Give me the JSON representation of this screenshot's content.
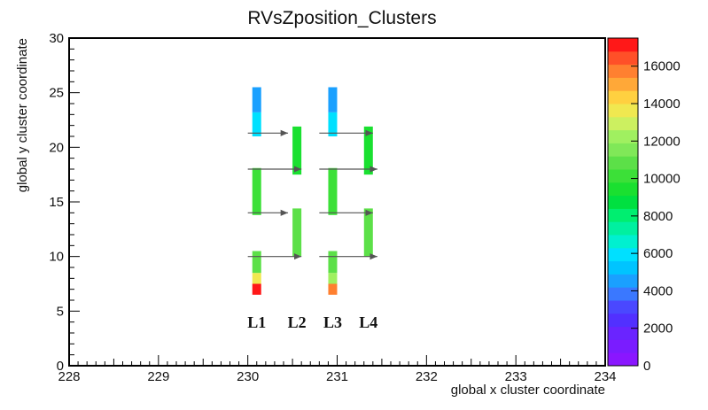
{
  "chart_data": {
    "type": "heatmap",
    "title": "RVsZposition_Clusters",
    "xlabel": "global x cluster coordinate",
    "ylabel": "global y cluster coordinate",
    "xlim": [
      228,
      234
    ],
    "ylim": [
      0,
      30
    ],
    "x_ticks": [
      "228",
      "229",
      "230",
      "231",
      "232",
      "233",
      "234"
    ],
    "y_ticks": [
      "0",
      "5",
      "10",
      "15",
      "20",
      "25",
      "30"
    ],
    "z_range": [
      0,
      17500
    ],
    "z_ticks": [
      "0",
      "2000",
      "4000",
      "6000",
      "8000",
      "10000",
      "12000",
      "14000",
      "16000"
    ],
    "palette": [
      "#8a16ff",
      "#7a1cff",
      "#6a24ff",
      "#5230ff",
      "#4a48ff",
      "#3a78ff",
      "#1aa0ff",
      "#00c4ff",
      "#00e0ff",
      "#00f0d0",
      "#00f0a0",
      "#00ee70",
      "#00e040",
      "#1ae030",
      "#3ce038",
      "#5ce048",
      "#80e858",
      "#a0f060",
      "#ccf060",
      "#f0e850",
      "#ffd040",
      "#ffa838",
      "#ff8030",
      "#ff5028",
      "#ff1818"
    ],
    "layer_labels": [
      "L1",
      "L2",
      "L3",
      "L4"
    ],
    "columns": [
      {
        "layer": "L1",
        "x": 230.1,
        "cells": [
          {
            "y0": 6.5,
            "y1": 7.5,
            "z": 17000
          },
          {
            "y0": 7.5,
            "y1": 8.5,
            "z": 13500
          },
          {
            "y0": 8.5,
            "y1": 10.5,
            "z": 10500
          },
          {
            "y0": 13.8,
            "y1": 18.1,
            "z": 10000
          },
          {
            "y0": 21.0,
            "y1": 23.2,
            "z": 6000
          },
          {
            "y0": 23.2,
            "y1": 25.5,
            "z": 4500
          }
        ]
      },
      {
        "layer": "L2",
        "x": 230.55,
        "cells": [
          {
            "y0": 10.0,
            "y1": 14.4,
            "z": 10500
          },
          {
            "y0": 17.5,
            "y1": 21.9,
            "z": 9500
          }
        ]
      },
      {
        "layer": "L3",
        "x": 230.95,
        "cells": [
          {
            "y0": 6.5,
            "y1": 7.5,
            "z": 15500
          },
          {
            "y0": 7.5,
            "y1": 8.5,
            "z": 12500
          },
          {
            "y0": 8.5,
            "y1": 10.5,
            "z": 10500
          },
          {
            "y0": 13.8,
            "y1": 18.1,
            "z": 10000
          },
          {
            "y0": 21.0,
            "y1": 23.2,
            "z": 6000
          },
          {
            "y0": 23.2,
            "y1": 25.5,
            "z": 4500
          }
        ]
      },
      {
        "layer": "L4",
        "x": 231.35,
        "cells": [
          {
            "y0": 10.0,
            "y1": 14.4,
            "z": 10500
          },
          {
            "y0": 17.5,
            "y1": 21.9,
            "z": 9500
          }
        ]
      }
    ],
    "arrows": [
      {
        "y": 21.3,
        "x0": 230.0,
        "x1": 230.45
      },
      {
        "y": 18.0,
        "x0": 230.0,
        "x1": 230.6
      },
      {
        "y": 14.0,
        "x0": 230.0,
        "x1": 230.45
      },
      {
        "y": 10.0,
        "x0": 230.0,
        "x1": 230.6
      },
      {
        "y": 21.3,
        "x0": 230.8,
        "x1": 231.4
      },
      {
        "y": 18.0,
        "x0": 230.8,
        "x1": 231.45
      },
      {
        "y": 14.0,
        "x0": 230.8,
        "x1": 231.4
      },
      {
        "y": 10.0,
        "x0": 230.8,
        "x1": 231.45
      }
    ],
    "grid": false,
    "legend": "colorbar right"
  }
}
